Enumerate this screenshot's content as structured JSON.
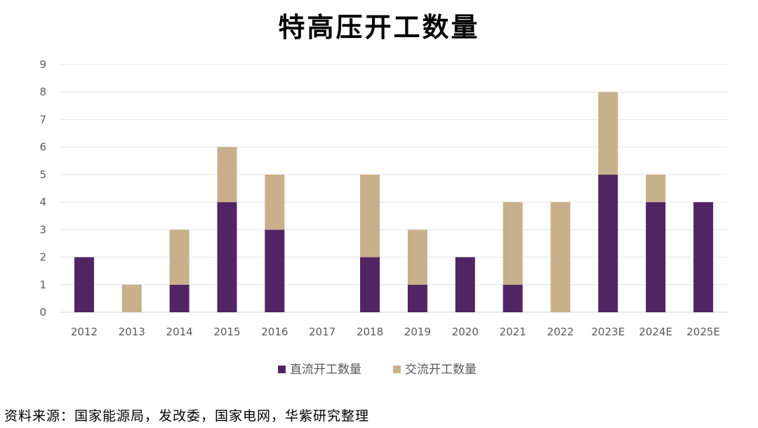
{
  "title": "特高压开工数量",
  "source_note": "资料来源：国家能源局，发改委，国家电网，华紫研究整理",
  "chart_data": {
    "type": "bar",
    "stacked": true,
    "title": "特高压开工数量",
    "categories": [
      "2012",
      "2013",
      "2014",
      "2015",
      "2016",
      "2017",
      "2018",
      "2019",
      "2020",
      "2021",
      "2022",
      "2023E",
      "2024E",
      "2025E"
    ],
    "series": [
      {
        "name": "直流开工数量",
        "color": "#512563",
        "values": [
          2,
          0,
          1,
          4,
          3,
          0,
          2,
          1,
          2,
          1,
          0,
          5,
          4,
          4
        ]
      },
      {
        "name": "交流开工数量",
        "color": "#c8b08c",
        "values": [
          0,
          1,
          2,
          2,
          2,
          0,
          3,
          2,
          0,
          3,
          4,
          3,
          1,
          0
        ]
      }
    ],
    "ylim": [
      0,
      9
    ],
    "yticks": [
      0,
      1,
      2,
      3,
      4,
      5,
      6,
      7,
      8,
      9
    ],
    "grid": true,
    "legend_position": "bottom",
    "xlabel": "",
    "ylabel": ""
  }
}
